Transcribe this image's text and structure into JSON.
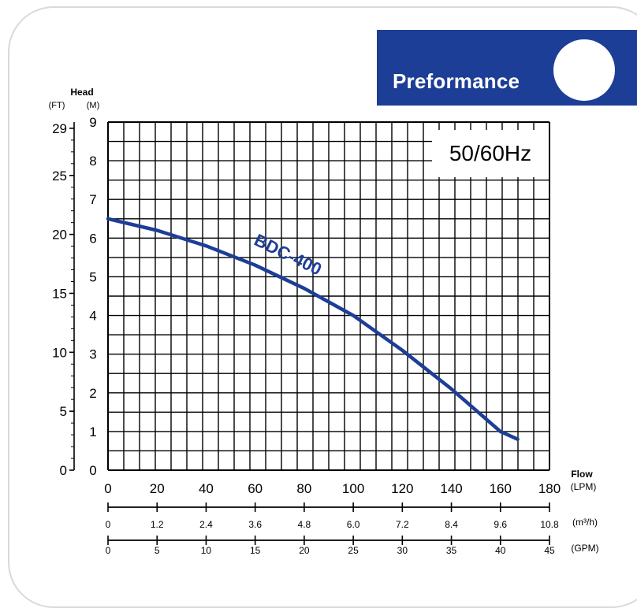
{
  "banner": {
    "title": "Preformance"
  },
  "chart_data": {
    "type": "line",
    "frequency_label": "50/60Hz",
    "ylabel_title": "Head",
    "ylabel_units": [
      "(FT)",
      "(M)"
    ],
    "xlabel_title": "Flow",
    "y_m_ticks": [
      0,
      1,
      2,
      3,
      4,
      5,
      6,
      7,
      8,
      9
    ],
    "y_ft_ticks": [
      0,
      5,
      10,
      15,
      20,
      25,
      29
    ],
    "ylim_m": [
      0,
      9
    ],
    "xlim_lpm": [
      0,
      180
    ],
    "grid": true,
    "x_axes": [
      {
        "unit": "(LPM)",
        "ticks": [
          "0",
          "20",
          "40",
          "60",
          "80",
          "100",
          "120",
          "140",
          "160",
          "180"
        ]
      },
      {
        "unit": "(m³/h)",
        "ticks": [
          "0",
          "1.2",
          "2.4",
          "3.6",
          "4.8",
          "6.0",
          "7.2",
          "8.4",
          "9.6",
          "10.8"
        ]
      },
      {
        "unit": "(GPM)",
        "ticks": [
          "0",
          "5",
          "10",
          "15",
          "20",
          "25",
          "30",
          "35",
          "40",
          "45"
        ]
      }
    ],
    "series": [
      {
        "name": "BDC-400",
        "color": "#1d3e96",
        "x": [
          0,
          20,
          40,
          60,
          80,
          100,
          120,
          140,
          160,
          167
        ],
        "y": [
          6.5,
          6.2,
          5.8,
          5.3,
          4.7,
          4.0,
          3.1,
          2.1,
          1.0,
          0.8
        ]
      }
    ]
  }
}
